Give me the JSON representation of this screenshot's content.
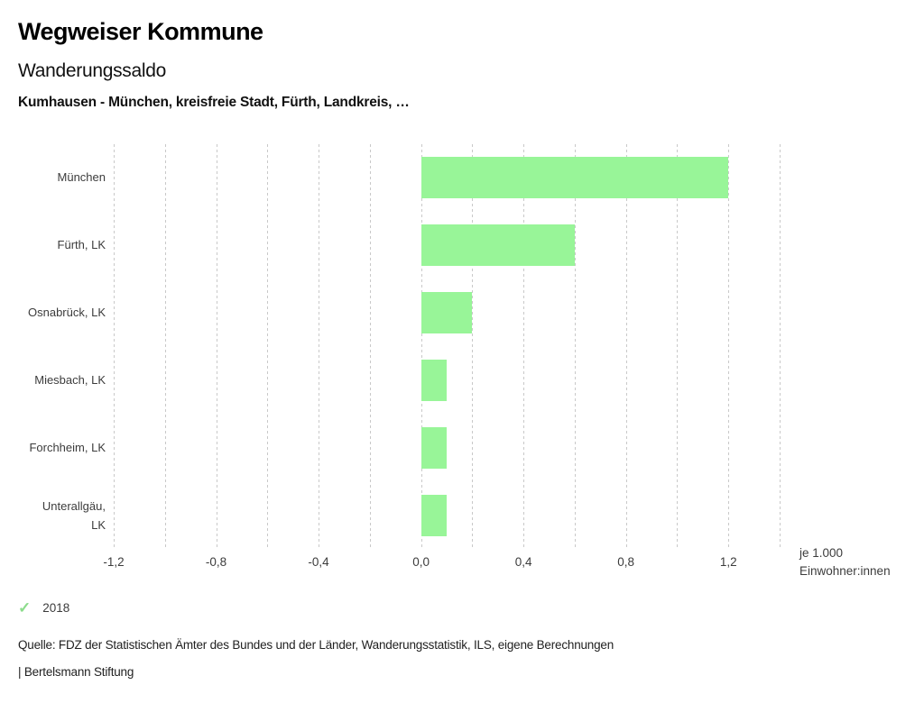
{
  "header": {
    "app_title": "Wegweiser Kommune",
    "chart_title": "Wanderungssaldo",
    "subtitle": "Kumhausen - München, kreisfreie Stadt, Fürth, Landkreis, …"
  },
  "chart_data": {
    "type": "bar",
    "orientation": "horizontal",
    "title": "Wanderungssaldo",
    "categories": [
      "München",
      "Fürth, LK",
      "Osnabrück, LK",
      "Miesbach, LK",
      "Forchheim, LK",
      "Unterallgäu, LK"
    ],
    "series": [
      {
        "name": "2018",
        "values": [
          1.2,
          0.6,
          0.2,
          0.1,
          0.1,
          0.1
        ]
      }
    ],
    "xlim": [
      -1.2,
      1.4
    ],
    "gridline_step": 0.2,
    "grid": true,
    "ticks": [
      {
        "value": -1.2,
        "label": "-1,2"
      },
      {
        "value": -0.8,
        "label": "-0,8"
      },
      {
        "value": -0.4,
        "label": "-0,4"
      },
      {
        "value": 0.0,
        "label": "0,0"
      },
      {
        "value": 0.4,
        "label": "0,4"
      },
      {
        "value": 0.8,
        "label": "0,8"
      },
      {
        "value": 1.2,
        "label": "1,2"
      }
    ],
    "unit_label_lines": [
      "je 1.000",
      "Einwohner:innen"
    ],
    "bar_color": "#98f598",
    "gridline_color": "#c9c9c9",
    "legend_position": "bottom-left"
  },
  "legend": {
    "year": "2018",
    "check_icon": "checkmark",
    "check_color": "#8cdc8c"
  },
  "footer": {
    "source": "Quelle: FDZ der Statistischen Ämter des Bundes und der Länder, Wanderungsstatistik, ILS, eigene Berechnungen",
    "branding": "| Bertelsmann Stiftung"
  }
}
